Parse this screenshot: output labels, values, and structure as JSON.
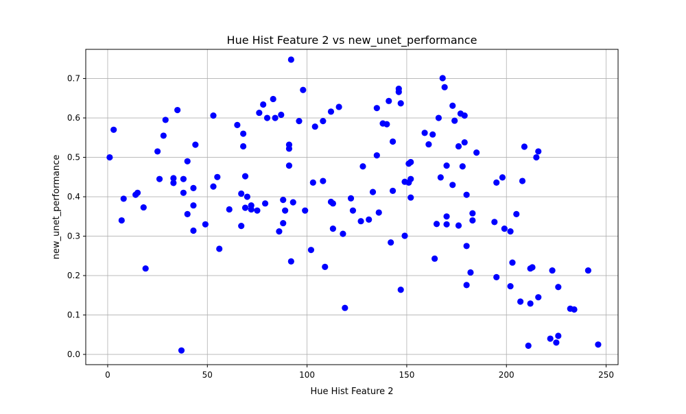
{
  "chart_data": {
    "type": "scatter",
    "title": "Hue Hist Feature 2 vs new_unet_performance",
    "xlabel": "Hue Hist Feature 2",
    "ylabel": "new_unet_performance",
    "xlim": [
      -11,
      256
    ],
    "ylim": [
      -0.026,
      0.774
    ],
    "xticks": [
      0,
      50,
      100,
      150,
      200,
      250
    ],
    "xtick_labels": [
      "0",
      "50",
      "100",
      "150",
      "200",
      "250"
    ],
    "yticks": [
      0.0,
      0.1,
      0.2,
      0.3,
      0.4,
      0.5,
      0.6,
      0.7
    ],
    "ytick_labels": [
      "0.0",
      "0.1",
      "0.2",
      "0.3",
      "0.4",
      "0.5",
      "0.6",
      "0.7"
    ],
    "grid": true,
    "marker_color": "#0000ff",
    "series": [
      {
        "points": [
          [
            1,
            0.5
          ],
          [
            3,
            0.57
          ],
          [
            7,
            0.34
          ],
          [
            8,
            0.395
          ],
          [
            14,
            0.405
          ],
          [
            15,
            0.41
          ],
          [
            18,
            0.373
          ],
          [
            19,
            0.218
          ],
          [
            25,
            0.515
          ],
          [
            26,
            0.445
          ],
          [
            28,
            0.555
          ],
          [
            29,
            0.595
          ],
          [
            33,
            0.447
          ],
          [
            33,
            0.435
          ],
          [
            35,
            0.62
          ],
          [
            37,
            0.01
          ],
          [
            38,
            0.445
          ],
          [
            38,
            0.41
          ],
          [
            40,
            0.49
          ],
          [
            40,
            0.356
          ],
          [
            43,
            0.422
          ],
          [
            43,
            0.378
          ],
          [
            43,
            0.314
          ],
          [
            44,
            0.532
          ],
          [
            49,
            0.33
          ],
          [
            53,
            0.606
          ],
          [
            53,
            0.426
          ],
          [
            55,
            0.45
          ],
          [
            56,
            0.268
          ],
          [
            61,
            0.368
          ],
          [
            65,
            0.582
          ],
          [
            67,
            0.408
          ],
          [
            67,
            0.326
          ],
          [
            68,
            0.56
          ],
          [
            68,
            0.528
          ],
          [
            69,
            0.452
          ],
          [
            69,
            0.372
          ],
          [
            70,
            0.4
          ],
          [
            72,
            0.378
          ],
          [
            72,
            0.368
          ],
          [
            75,
            0.365
          ],
          [
            76,
            0.613
          ],
          [
            78,
            0.634
          ],
          [
            79,
            0.383
          ],
          [
            80,
            0.6
          ],
          [
            83,
            0.648
          ],
          [
            84,
            0.6
          ],
          [
            86,
            0.312
          ],
          [
            87,
            0.608
          ],
          [
            88,
            0.392
          ],
          [
            88,
            0.333
          ],
          [
            89,
            0.365
          ],
          [
            91,
            0.532
          ],
          [
            91,
            0.522
          ],
          [
            91,
            0.479
          ],
          [
            92,
            0.748
          ],
          [
            92,
            0.236
          ],
          [
            93,
            0.386
          ],
          [
            96,
            0.592
          ],
          [
            98,
            0.671
          ],
          [
            99,
            0.365
          ],
          [
            102,
            0.265
          ],
          [
            103,
            0.436
          ],
          [
            104,
            0.578
          ],
          [
            108,
            0.592
          ],
          [
            108,
            0.44
          ],
          [
            109,
            0.222
          ],
          [
            112,
            0.616
          ],
          [
            112,
            0.387
          ],
          [
            113,
            0.383
          ],
          [
            113,
            0.319
          ],
          [
            116,
            0.628
          ],
          [
            118,
            0.306
          ],
          [
            119,
            0.118
          ],
          [
            122,
            0.396
          ],
          [
            123,
            0.365
          ],
          [
            127,
            0.338
          ],
          [
            128,
            0.477
          ],
          [
            131,
            0.342
          ],
          [
            133,
            0.412
          ],
          [
            135,
            0.625
          ],
          [
            135,
            0.505
          ],
          [
            136,
            0.36
          ],
          [
            138,
            0.586
          ],
          [
            140,
            0.584
          ],
          [
            141,
            0.643
          ],
          [
            142,
            0.284
          ],
          [
            143,
            0.54
          ],
          [
            143,
            0.415
          ],
          [
            146,
            0.674
          ],
          [
            146,
            0.666
          ],
          [
            147,
            0.637
          ],
          [
            147,
            0.164
          ],
          [
            149,
            0.438
          ],
          [
            149,
            0.301
          ],
          [
            151,
            0.484
          ],
          [
            151,
            0.436
          ],
          [
            152,
            0.488
          ],
          [
            152,
            0.445
          ],
          [
            152,
            0.398
          ],
          [
            159,
            0.562
          ],
          [
            161,
            0.533
          ],
          [
            163,
            0.558
          ],
          [
            164,
            0.243
          ],
          [
            165,
            0.331
          ],
          [
            166,
            0.6
          ],
          [
            167,
            0.449
          ],
          [
            168,
            0.701
          ],
          [
            169,
            0.678
          ],
          [
            170,
            0.479
          ],
          [
            170,
            0.35
          ],
          [
            170,
            0.33
          ],
          [
            173,
            0.631
          ],
          [
            173,
            0.43
          ],
          [
            174,
            0.593
          ],
          [
            176,
            0.528
          ],
          [
            176,
            0.327
          ],
          [
            177,
            0.611
          ],
          [
            178,
            0.477
          ],
          [
            179,
            0.606
          ],
          [
            179,
            0.538
          ],
          [
            180,
            0.405
          ],
          [
            180,
            0.275
          ],
          [
            180,
            0.176
          ],
          [
            182,
            0.208
          ],
          [
            183,
            0.358
          ],
          [
            183,
            0.34
          ],
          [
            185,
            0.512
          ],
          [
            194,
            0.336
          ],
          [
            195,
            0.436
          ],
          [
            195,
            0.196
          ],
          [
            198,
            0.449
          ],
          [
            199,
            0.319
          ],
          [
            202,
            0.312
          ],
          [
            202,
            0.173
          ],
          [
            203,
            0.233
          ],
          [
            205,
            0.356
          ],
          [
            207,
            0.134
          ],
          [
            208,
            0.44
          ],
          [
            209,
            0.527
          ],
          [
            211,
            0.022
          ],
          [
            212,
            0.218
          ],
          [
            212,
            0.129
          ],
          [
            213,
            0.221
          ],
          [
            215,
            0.5
          ],
          [
            216,
            0.515
          ],
          [
            216,
            0.145
          ],
          [
            222,
            0.04
          ],
          [
            223,
            0.213
          ],
          [
            225,
            0.03
          ],
          [
            226,
            0.047
          ],
          [
            226,
            0.171
          ],
          [
            232,
            0.116
          ],
          [
            234,
            0.114
          ],
          [
            241,
            0.213
          ],
          [
            246,
            0.025
          ]
        ]
      }
    ]
  }
}
